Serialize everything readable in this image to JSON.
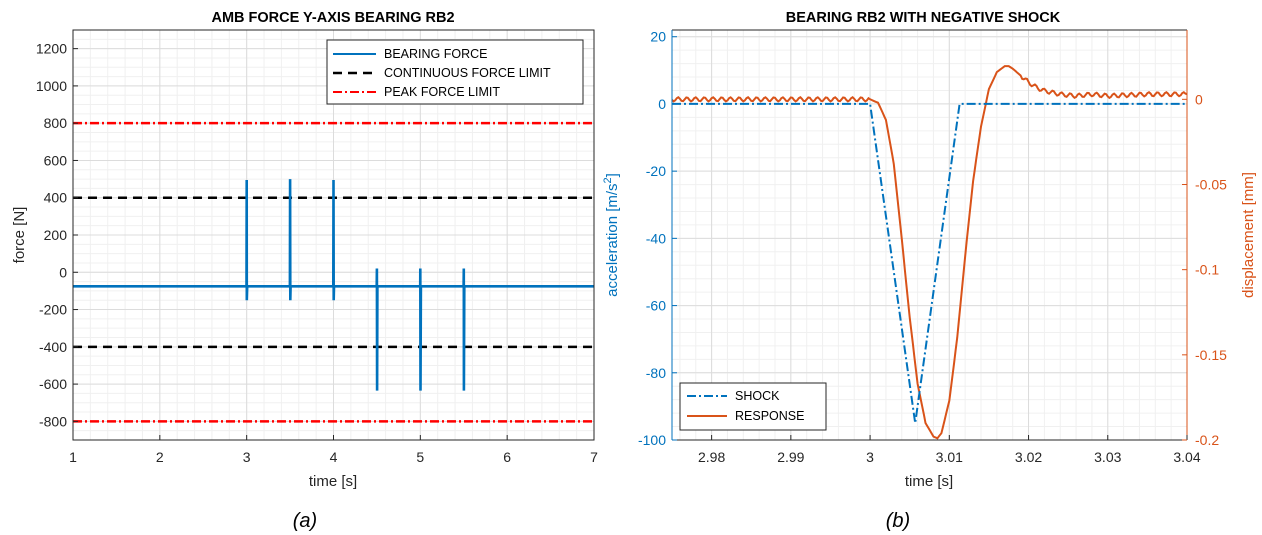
{
  "chart_data": [
    {
      "type": "line",
      "title": "AMB FORCE Y-AXIS BEARING RB2",
      "xlabel": "time [s]",
      "ylabel": "force [N]",
      "xlim": [
        1,
        7
      ],
      "ylim": [
        -900,
        1300
      ],
      "xticks": [
        "1",
        "2",
        "3",
        "4",
        "5",
        "6",
        "7"
      ],
      "yticks": [
        "-800",
        "-600",
        "-400",
        "-200",
        "0",
        "200",
        "400",
        "600",
        "800",
        "1000",
        "1200"
      ],
      "grid": true,
      "caption": "(a)",
      "legend_position": "top-right",
      "series": [
        {
          "name": "BEARING FORCE",
          "color": "#0072BD",
          "style": "solid",
          "baseline": -75,
          "spikes": [
            {
              "t": 3.0,
              "max": 495,
              "min": -150
            },
            {
              "t": 3.5,
              "max": 500,
              "min": -150
            },
            {
              "t": 4.0,
              "max": 495,
              "min": -150
            },
            {
              "t": 4.5,
              "max": 20,
              "min": -635
            },
            {
              "t": 5.0,
              "max": 20,
              "min": -635
            },
            {
              "t": 5.5,
              "max": 20,
              "min": -635
            }
          ]
        },
        {
          "name": "CONTINUOUS FORCE LIMIT",
          "color": "#000000",
          "style": "dashed",
          "values": [
            400,
            -400
          ]
        },
        {
          "name": "PEAK FORCE LIMIT",
          "color": "#FF0000",
          "style": "dash-dot",
          "values": [
            800,
            -800
          ]
        }
      ]
    },
    {
      "type": "line",
      "title": "BEARING RB2 WITH NEGATIVE SHOCK",
      "xlabel": "time [s]",
      "ylabel_left": "acceleration [m/s",
      "ylabel_left_sup": "2",
      "ylabel_left_end": "]",
      "ylabel_right": "displacement [mm]",
      "xlim": [
        2.975,
        3.04
      ],
      "ylim_left": [
        -100,
        22
      ],
      "ylim_right": [
        -0.2,
        0.0407
      ],
      "xticks": [
        "2.98",
        "2.99",
        "3",
        "3.01",
        "3.02",
        "3.03",
        "3.04"
      ],
      "yticks_left": [
        "-100",
        "-80",
        "-60",
        "-40",
        "-20",
        "0",
        "20"
      ],
      "yticks_right": [
        "-0.2",
        "-0.15",
        "-0.1",
        "-0.05",
        "0"
      ],
      "grid": true,
      "caption": "(b)",
      "legend_position": "bottom-left",
      "series": [
        {
          "name": "SHOCK",
          "color": "#0072BD",
          "style": "dash-dot",
          "axis": "left",
          "x": [
            2.975,
            3.0,
            3.0057,
            3.0113,
            3.04
          ],
          "y": [
            0,
            0,
            -95,
            0,
            0
          ]
        },
        {
          "name": "RESPONSE",
          "color": "#D95319",
          "style": "solid",
          "axis": "right",
          "x": [
            2.975,
            3.0,
            3.001,
            3.002,
            3.003,
            3.004,
            3.005,
            3.006,
            3.007,
            3.008,
            3.0085,
            3.009,
            3.01,
            3.011,
            3.012,
            3.013,
            3.014,
            3.015,
            3.016,
            3.017,
            3.0175,
            3.018,
            3.019,
            3.02,
            3.021,
            3.022,
            3.024,
            3.026,
            3.028,
            3.03,
            3.035,
            3.04
          ],
          "y": [
            0.0,
            0.0,
            -0.002,
            -0.012,
            -0.038,
            -0.082,
            -0.128,
            -0.167,
            -0.19,
            -0.198,
            -0.199,
            -0.196,
            -0.177,
            -0.14,
            -0.092,
            -0.048,
            -0.016,
            0.006,
            0.016,
            0.0195,
            0.0195,
            0.018,
            0.014,
            0.01,
            0.007,
            0.005,
            0.003,
            0.002,
            0.003,
            0.002,
            0.003,
            0.003
          ]
        }
      ]
    }
  ]
}
